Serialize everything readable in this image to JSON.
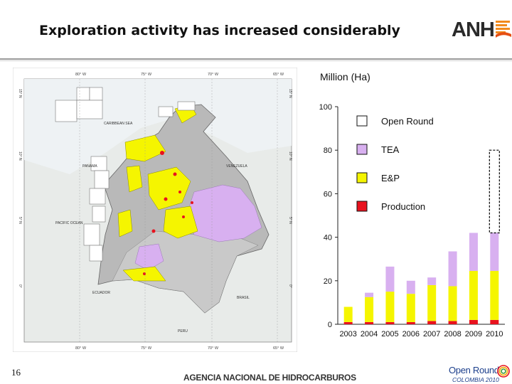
{
  "header": {
    "title": "Exploration activity has increased considerably",
    "logo_text": "ANH"
  },
  "map": {
    "longitude_labels": [
      "80° W",
      "75° W",
      "70° W",
      "65° W"
    ],
    "latitude_labels": [
      "15° N",
      "10° N",
      "5° N",
      "0°"
    ],
    "place_labels": [
      "CARIBBEAN SEA",
      "PANAMA",
      "VENEZUELA",
      "PACIFIC OCEAN",
      "ECUADOR",
      "BRASIL",
      "PERU"
    ]
  },
  "chart_data": {
    "type": "bar",
    "stacked": true,
    "ylabel": "Million (Ha)",
    "ylim": [
      0,
      100
    ],
    "yticks": [
      0,
      20,
      40,
      60,
      80,
      100
    ],
    "categories": [
      "2003",
      "2004",
      "2005",
      "2006",
      "2007",
      "2008",
      "2009",
      "2010"
    ],
    "series": [
      {
        "name": "Production",
        "color": "#e8121e",
        "values": [
          1,
          1,
          1,
          1,
          1.5,
          1.5,
          2,
          2
        ]
      },
      {
        "name": "E&P",
        "color": "#f5f500",
        "values": [
          7,
          11.5,
          14,
          13,
          16.5,
          16,
          22.5,
          22.5
        ]
      },
      {
        "name": "TEA",
        "color": "#d8b0f0",
        "values": [
          0,
          2,
          11.5,
          6,
          3.5,
          16,
          17.5,
          17.5
        ]
      },
      {
        "name": "Open Round",
        "color": "#ffffff",
        "values": [
          0,
          0,
          0,
          0,
          0,
          0,
          0,
          38
        ]
      }
    ],
    "legend_order": [
      "Open Round",
      "TEA",
      "E&P",
      "Production"
    ],
    "legend_position": "top-right",
    "grid": false
  },
  "footer": {
    "page_number": "16",
    "agency": "AGENCIA NACIONAL DE HIDROCARBUROS",
    "event_title": "Open Round",
    "event_subtitle": "COLOMBIA 2010"
  }
}
